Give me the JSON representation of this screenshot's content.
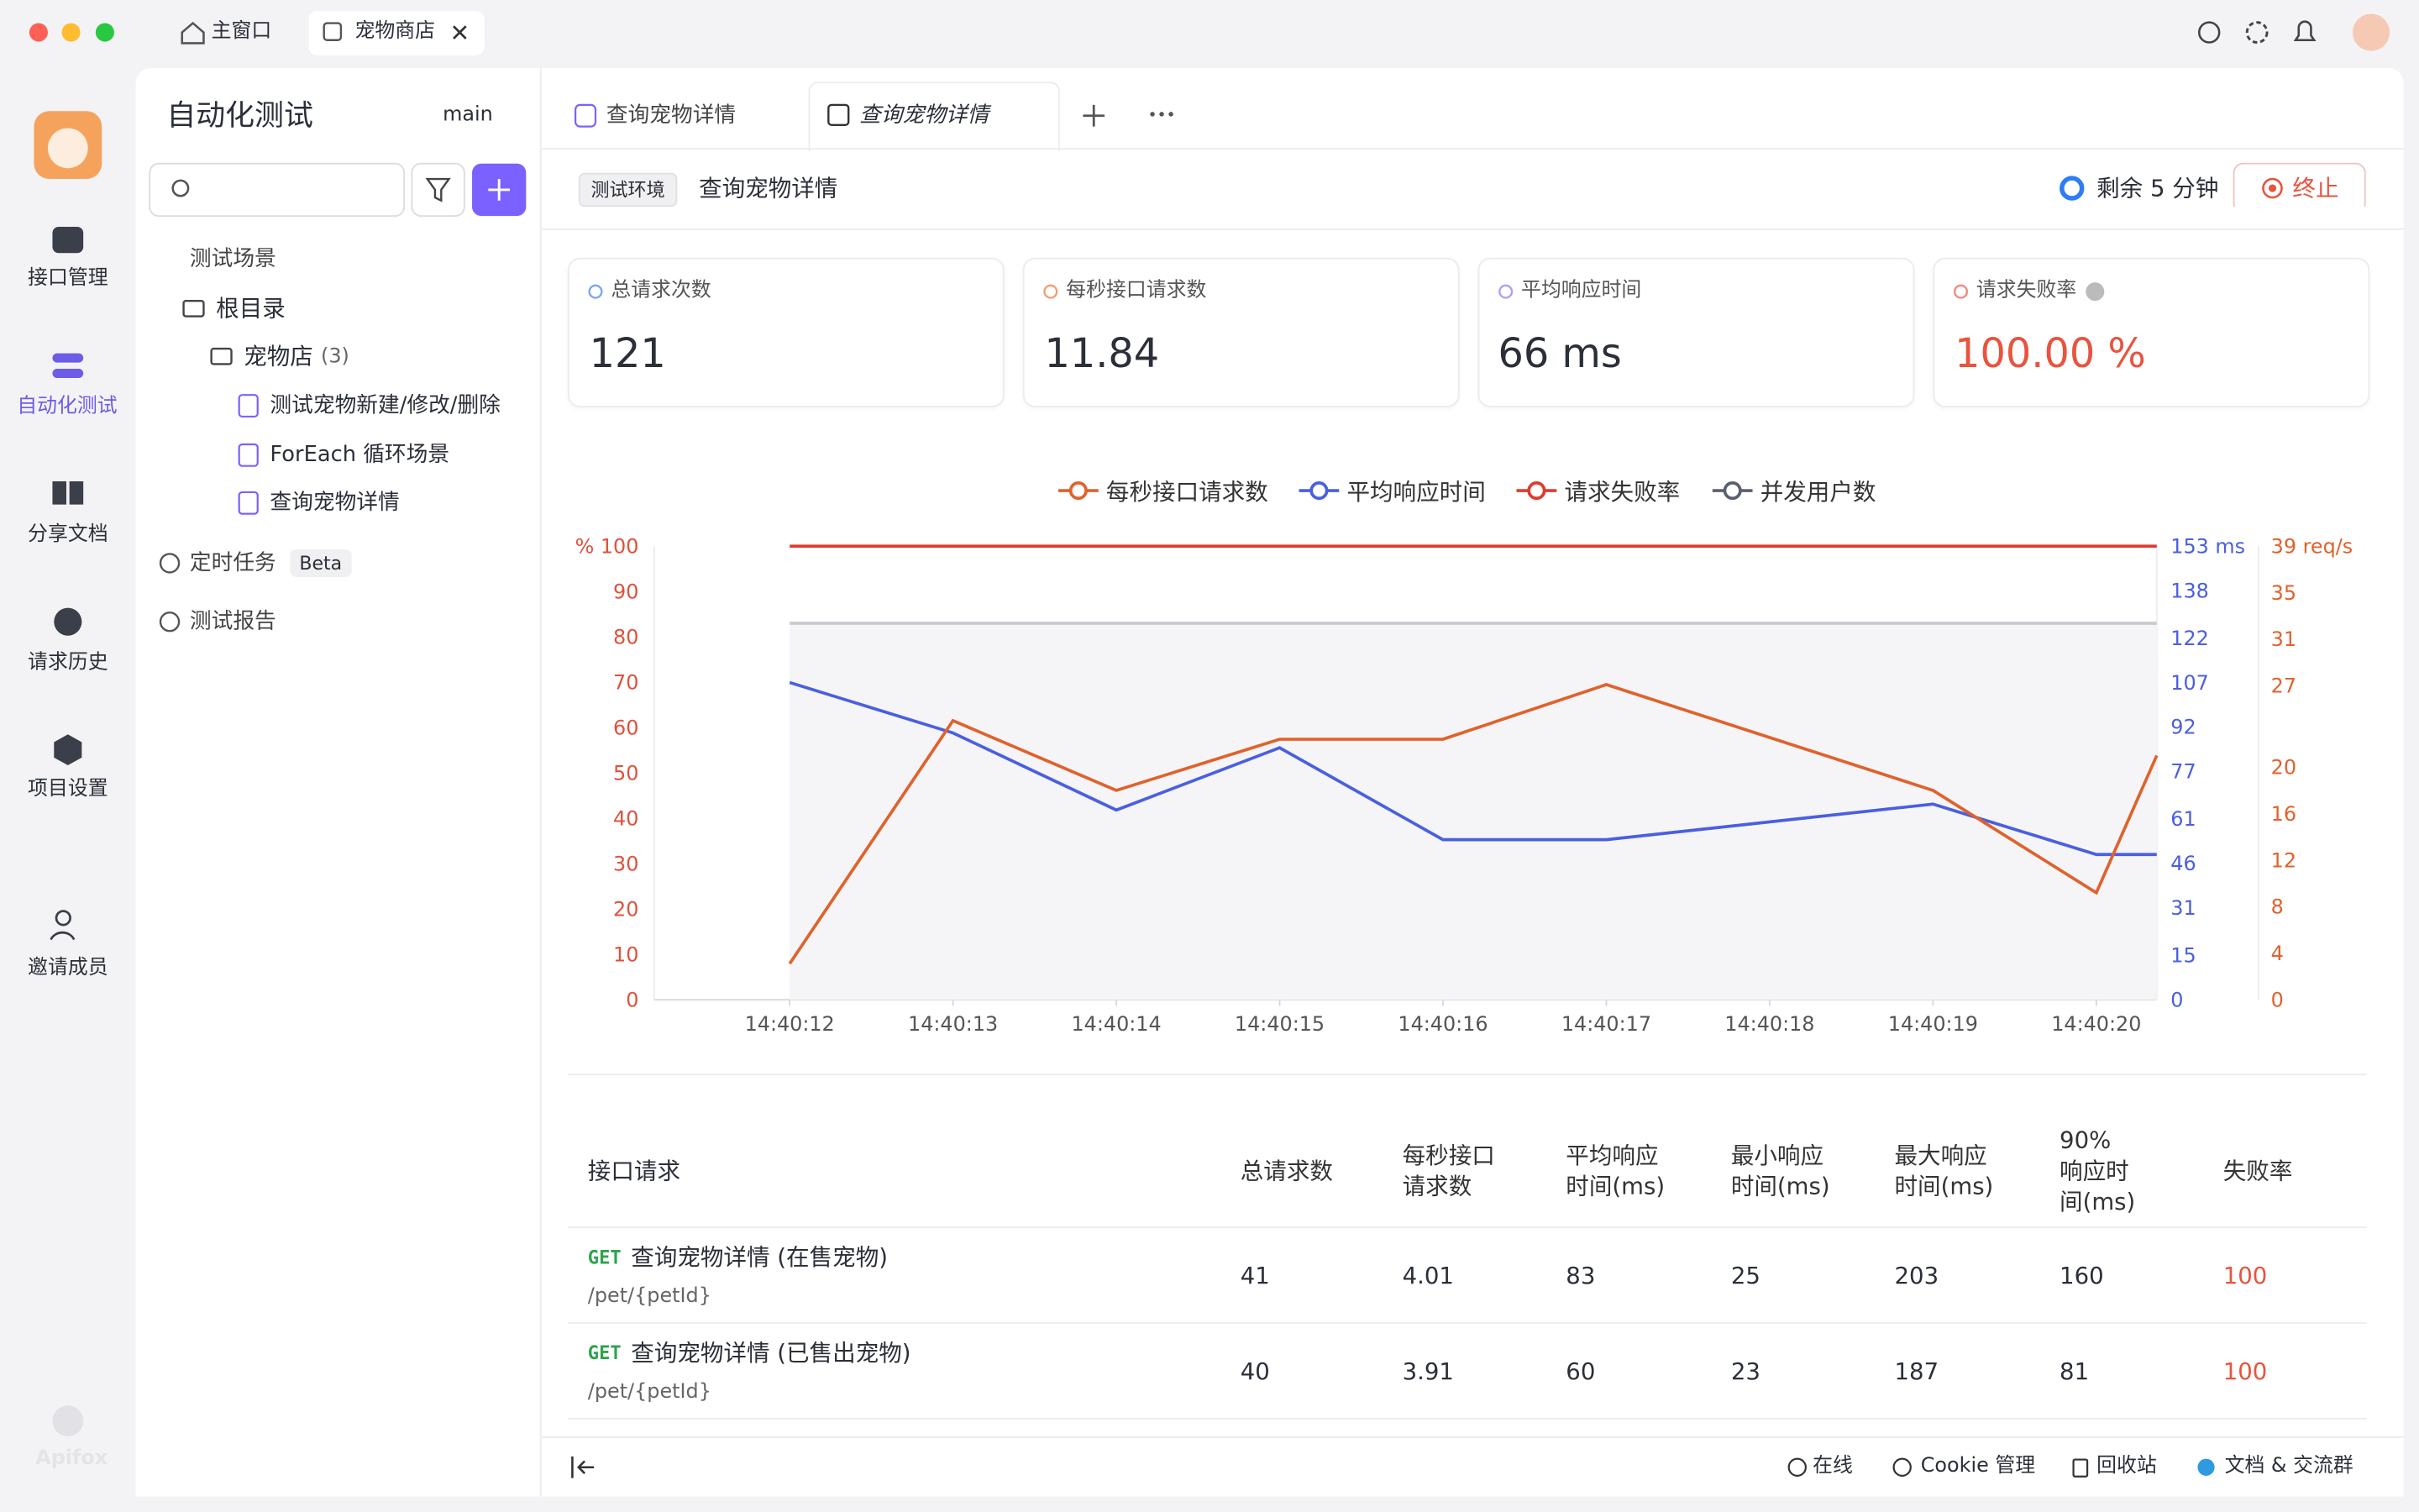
{
  "window": {
    "tabs": [
      "主窗口",
      "宠物商店"
    ]
  },
  "nav": {
    "items": [
      "接口管理",
      "自动化测试",
      "分享文档",
      "请求历史",
      "项目设置",
      "邀请成员"
    ],
    "brand": "Apifox"
  },
  "panel": {
    "title": "自动化测试",
    "branch": "main",
    "tree": {
      "scenes": "测试场景",
      "root": "根目录",
      "folder": "宠物店",
      "count": "(3)",
      "items": [
        "测试宠物新建/修改/删除",
        "ForEach 循环场景",
        "查询宠物详情"
      ]
    },
    "schedule": "定时任务",
    "beta": "Beta",
    "report": "测试报告"
  },
  "editor_tabs": [
    "查询宠物详情",
    "查询宠物详情"
  ],
  "toolbar": {
    "env": "测试环境",
    "name": "查询宠物详情",
    "remaining": "剩余 5 分钟",
    "stop": "终止"
  },
  "stats": [
    {
      "label": "总请求次数",
      "value": "121"
    },
    {
      "label": "每秒接口请求数",
      "value": "11.84"
    },
    {
      "label": "平均响应时间",
      "value": "66 ms"
    },
    {
      "label": "请求失败率",
      "value": "100.00 %"
    }
  ],
  "chart_data": {
    "type": "line",
    "x": [
      12,
      13,
      14,
      15,
      16,
      17,
      19,
      20,
      20.37
    ],
    "xlim": [
      11.17,
      20.37
    ],
    "xticks": [
      {
        "value": 12,
        "label": "14:40:12"
      },
      {
        "value": 13,
        "label": "14:40:13"
      },
      {
        "value": 14,
        "label": "14:40:14"
      },
      {
        "value": 15,
        "label": "14:40:15"
      },
      {
        "value": 16,
        "label": "14:40:16"
      },
      {
        "value": 17,
        "label": "14:40:17"
      },
      {
        "value": 18,
        "label": "14:40:18"
      },
      {
        "value": 19,
        "label": "14:40:19"
      },
      {
        "value": 20,
        "label": "14:40:20"
      }
    ],
    "ylim": [
      0,
      100
    ],
    "yticks": [
      0,
      10,
      20,
      30,
      40,
      50,
      60,
      70,
      80,
      90,
      {
        "value": 100,
        "label": "% 100"
      }
    ],
    "y2lim": [
      0,
      153
    ],
    "y2ticks": [
      0,
      15,
      31,
      46,
      61,
      77,
      92,
      107,
      122,
      138,
      {
        "value": 153,
        "label": "153 ms"
      }
    ],
    "y3lim": [
      0,
      39
    ],
    "y3ticks": [
      0,
      4,
      8,
      12,
      16,
      20,
      27,
      31,
      35,
      {
        "value": 39,
        "label": "39 req/s"
      }
    ],
    "series": [
      {
        "name": "每秒接口请求数",
        "color": "#e0622c",
        "axis": "y3",
        "values": [
          3.1,
          24,
          18,
          22.4,
          22.4,
          27.1,
          18,
          9.2,
          21
        ]
      },
      {
        "name": "平均响应时间",
        "color": "#4a5fe0",
        "axis": "y2",
        "values": [
          107,
          90,
          64,
          85,
          54,
          54,
          66,
          49,
          49
        ]
      },
      {
        "name": "请求失败率",
        "color": "#e03a2f",
        "axis": "y",
        "values": [
          100,
          100,
          100,
          100,
          100,
          100,
          100,
          100,
          100
        ]
      },
      {
        "name": "并发用户数",
        "color": "#5b6070",
        "axis": "y",
        "area": true,
        "values": [
          83,
          83,
          83,
          83,
          83,
          83,
          83,
          83,
          83
        ]
      }
    ]
  },
  "table": {
    "headers": [
      "接口请求",
      "总请求数",
      "每秒接口请求数",
      "平均响应时间(ms)",
      "最小响应时间(ms)",
      "最大响应时间(ms)",
      "90% 响应时间(ms)",
      "失败率"
    ],
    "rows": [
      {
        "method": "GET",
        "name": "查询宠物详情 (在售宠物)",
        "path": "/pet/{petId}",
        "cells": [
          41,
          4.01,
          83,
          25,
          203,
          160,
          100
        ]
      },
      {
        "method": "GET",
        "name": "查询宠物详情 (已售出宠物)",
        "path": "/pet/{petId}",
        "cells": [
          40,
          3.91,
          60,
          23,
          187,
          81,
          100
        ]
      }
    ]
  },
  "footer": [
    "在线",
    "Cookie 管理",
    "回收站",
    "文档 & 交流群"
  ]
}
